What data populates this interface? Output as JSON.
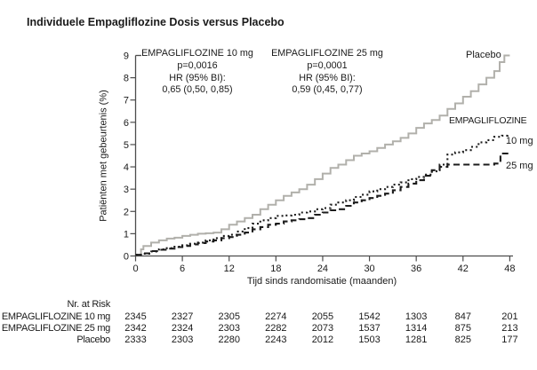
{
  "title": "Individuele Empagliflozine Dosis versus Placebo",
  "colors": {
    "placebo_line": "#b1b0ab",
    "empagliflozine_line": "#1c1c1c",
    "axis": "#4d4d4d",
    "text": "#1a1a1a"
  },
  "annotations": [
    {
      "lines": [
        "EMPAGLIFLOZINE 10 mg",
        "p=0,0016",
        "HR (95% BI):",
        "0,65 (0,50, 0,85)"
      ]
    },
    {
      "lines": [
        "EMPAGLIFLOZINE 25 mg",
        "p=0,0001",
        "HR (95% BI):",
        "0,59 (0,45, 0,77)"
      ]
    }
  ],
  "curve_labels": {
    "placebo": "Placebo",
    "group": "EMPAGLIFLOZINE",
    "dose10": "10 mg",
    "dose25": "25 mg"
  },
  "risk_table": {
    "header": "Nr. at Risk",
    "time_points": [
      0,
      6,
      12,
      18,
      24,
      30,
      36,
      42,
      48
    ],
    "rows": [
      {
        "label": "EMPAGLIFLOZINE 10 mg",
        "values": [
          "2345",
          "2327",
          "2305",
          "2274",
          "2055",
          "1542",
          "1303",
          "847",
          "201"
        ]
      },
      {
        "label": "EMPAGLIFLOZINE 25 mg",
        "values": [
          "2342",
          "2324",
          "2303",
          "2282",
          "2073",
          "1537",
          "1314",
          "875",
          "213"
        ]
      },
      {
        "label": "Placebo",
        "values": [
          "2333",
          "2303",
          "2280",
          "2243",
          "2012",
          "1503",
          "1281",
          "825",
          "177"
        ]
      }
    ]
  },
  "chart_data": {
    "type": "line",
    "subtype": "kaplan-meier-step",
    "title": "Individuele Empagliflozine Dosis versus Placebo",
    "xlabel": "Tijd sinds randomisatie (maanden)",
    "ylabel": "Patiënten met gebeurtenis (%)",
    "xlim": [
      0,
      48
    ],
    "ylim": [
      0,
      9
    ],
    "xticks": [
      0,
      6,
      12,
      18,
      24,
      30,
      36,
      42,
      48
    ],
    "yticks": [
      0,
      1,
      2,
      3,
      4,
      5,
      6,
      7,
      8,
      9
    ],
    "grid": false,
    "legend_position": "right-of-curves",
    "series": [
      {
        "name": "Placebo",
        "style": "solid",
        "color": "#b1b0ab",
        "points": [
          [
            0,
            0.05
          ],
          [
            0.7,
            0.3
          ],
          [
            1,
            0.45
          ],
          [
            2,
            0.6
          ],
          [
            3,
            0.7
          ],
          [
            4,
            0.78
          ],
          [
            5,
            0.82
          ],
          [
            6,
            0.9
          ],
          [
            7,
            0.95
          ],
          [
            8,
            1.0
          ],
          [
            9,
            1.02
          ],
          [
            10,
            1.05
          ],
          [
            11,
            1.2
          ],
          [
            12,
            1.4
          ],
          [
            13,
            1.55
          ],
          [
            14,
            1.7
          ],
          [
            15,
            1.85
          ],
          [
            16,
            2.1
          ],
          [
            17,
            2.3
          ],
          [
            18,
            2.5
          ],
          [
            19,
            2.7
          ],
          [
            20,
            2.85
          ],
          [
            21,
            3.0
          ],
          [
            22,
            3.2
          ],
          [
            23,
            3.45
          ],
          [
            24,
            3.7
          ],
          [
            25,
            3.95
          ],
          [
            26,
            4.1
          ],
          [
            27,
            4.3
          ],
          [
            28,
            4.5
          ],
          [
            29,
            4.6
          ],
          [
            30,
            4.7
          ],
          [
            31,
            4.85
          ],
          [
            32,
            5.0
          ],
          [
            33,
            5.15
          ],
          [
            34,
            5.3
          ],
          [
            35,
            5.5
          ],
          [
            36,
            5.75
          ],
          [
            37,
            5.95
          ],
          [
            38,
            6.1
          ],
          [
            39,
            6.3
          ],
          [
            40,
            6.6
          ],
          [
            41,
            6.85
          ],
          [
            42,
            7.15
          ],
          [
            43,
            7.4
          ],
          [
            44,
            7.7
          ],
          [
            45,
            8.0
          ],
          [
            46,
            8.3
          ],
          [
            46.7,
            8.7
          ],
          [
            47.3,
            9.0
          ],
          [
            48,
            9.0
          ]
        ]
      },
      {
        "name": "EMPAGLIFLOZINE 25 mg",
        "style": "dashed",
        "color": "#1c1c1c",
        "points": [
          [
            0,
            0.05
          ],
          [
            1,
            0.12
          ],
          [
            2,
            0.22
          ],
          [
            3,
            0.28
          ],
          [
            4,
            0.33
          ],
          [
            5,
            0.4
          ],
          [
            6,
            0.45
          ],
          [
            7,
            0.52
          ],
          [
            8,
            0.58
          ],
          [
            9,
            0.65
          ],
          [
            10,
            0.7
          ],
          [
            11,
            0.8
          ],
          [
            12,
            0.85
          ],
          [
            13,
            0.95
          ],
          [
            14,
            1.05
          ],
          [
            15,
            1.2
          ],
          [
            16,
            1.3
          ],
          [
            17,
            1.4
          ],
          [
            18,
            1.45
          ],
          [
            19,
            1.55
          ],
          [
            20,
            1.6
          ],
          [
            21,
            1.65
          ],
          [
            22,
            1.7
          ],
          [
            23,
            1.85
          ],
          [
            24,
            1.95
          ],
          [
            25,
            2.05
          ],
          [
            26,
            2.1
          ],
          [
            27,
            2.25
          ],
          [
            28,
            2.4
          ],
          [
            29,
            2.5
          ],
          [
            30,
            2.6
          ],
          [
            31,
            2.7
          ],
          [
            32,
            2.8
          ],
          [
            33,
            2.95
          ],
          [
            34,
            3.1
          ],
          [
            35,
            3.25
          ],
          [
            36,
            3.4
          ],
          [
            37,
            3.6
          ],
          [
            38,
            3.85
          ],
          [
            39,
            4.0
          ],
          [
            40,
            4.1
          ],
          [
            42,
            4.1
          ],
          [
            44,
            4.1
          ],
          [
            46,
            4.15
          ],
          [
            46.8,
            4.6
          ],
          [
            48,
            4.6
          ]
        ]
      },
      {
        "name": "EMPAGLIFLOZINE 10 mg",
        "style": "dotted",
        "color": "#1c1c1c",
        "points": [
          [
            0,
            0.05
          ],
          [
            1,
            0.1
          ],
          [
            2,
            0.2
          ],
          [
            3,
            0.3
          ],
          [
            4,
            0.35
          ],
          [
            5,
            0.42
          ],
          [
            6,
            0.48
          ],
          [
            7,
            0.55
          ],
          [
            8,
            0.6
          ],
          [
            9,
            0.7
          ],
          [
            10,
            0.8
          ],
          [
            11,
            0.9
          ],
          [
            12,
            0.95
          ],
          [
            13,
            1.1
          ],
          [
            14,
            1.25
          ],
          [
            15,
            1.45
          ],
          [
            16,
            1.6
          ],
          [
            17,
            1.7
          ],
          [
            18,
            1.8
          ],
          [
            19,
            1.82
          ],
          [
            20,
            1.85
          ],
          [
            21,
            1.95
          ],
          [
            22,
            2.0
          ],
          [
            23,
            2.1
          ],
          [
            24,
            2.15
          ],
          [
            25,
            2.3
          ],
          [
            26,
            2.4
          ],
          [
            27,
            2.5
          ],
          [
            28,
            2.65
          ],
          [
            29,
            2.75
          ],
          [
            30,
            2.9
          ],
          [
            31,
            3.0
          ],
          [
            32,
            3.1
          ],
          [
            33,
            3.2
          ],
          [
            34,
            3.3
          ],
          [
            35,
            3.45
          ],
          [
            36,
            3.55
          ],
          [
            37,
            3.65
          ],
          [
            38,
            3.8
          ],
          [
            39,
            4.1
          ],
          [
            40,
            4.55
          ],
          [
            41,
            4.65
          ],
          [
            42,
            4.75
          ],
          [
            43,
            4.9
          ],
          [
            44,
            5.1
          ],
          [
            45,
            5.2
          ],
          [
            46,
            5.35
          ],
          [
            47,
            5.4
          ],
          [
            47.7,
            5.45
          ]
        ]
      }
    ]
  }
}
